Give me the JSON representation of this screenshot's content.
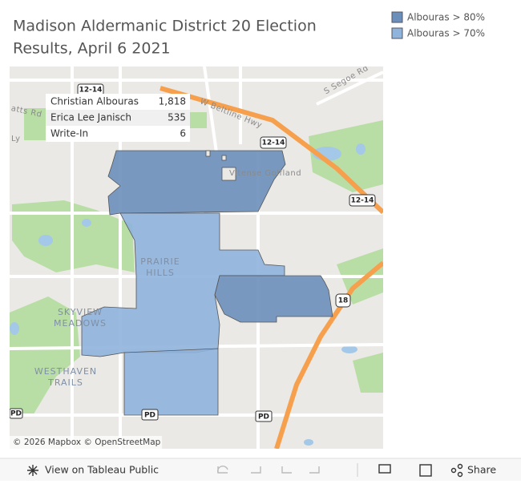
{
  "header": {
    "title_line1": "Madison Aldermanic District 20 Election",
    "title_line2": "Results, April 6 2021"
  },
  "legend": {
    "items": [
      {
        "label": "Albouras > 80%",
        "color": "#6b8fba"
      },
      {
        "label": "Albouras > 70%",
        "color": "#8fb3db"
      }
    ]
  },
  "results_table": {
    "rows": [
      [
        "Christian Albouras",
        "1,818"
      ],
      [
        "Erica Lee Janisch",
        "535"
      ],
      [
        "Write-In",
        "6"
      ]
    ]
  },
  "map": {
    "labels": {
      "beltline": "W Beltline Hwy",
      "segoe": "S Segoe Rd",
      "watts": "atts Rd",
      "golf": "Vitense Golfland",
      "prairie1": "PRAIRIE",
      "prairie2": "HILLS",
      "skyview1": "SKYVIEW",
      "skyview2": "MEADOWS",
      "westhaven1": "WESTHAVEN",
      "westhaven2": "TRAILS",
      "ly": "Ly"
    },
    "shields": {
      "hwy_a": "12-14",
      "hwy_b": "12-14",
      "hwy_c": "12-14",
      "hwy_18": "18",
      "pd_a": "PD",
      "pd_b": "PD",
      "pd_c": "PD"
    },
    "attribution": "© 2026 Mapbox © OpenStreetMap"
  },
  "toolbar": {
    "view": "View on Tableau Public",
    "share": "Share"
  }
}
